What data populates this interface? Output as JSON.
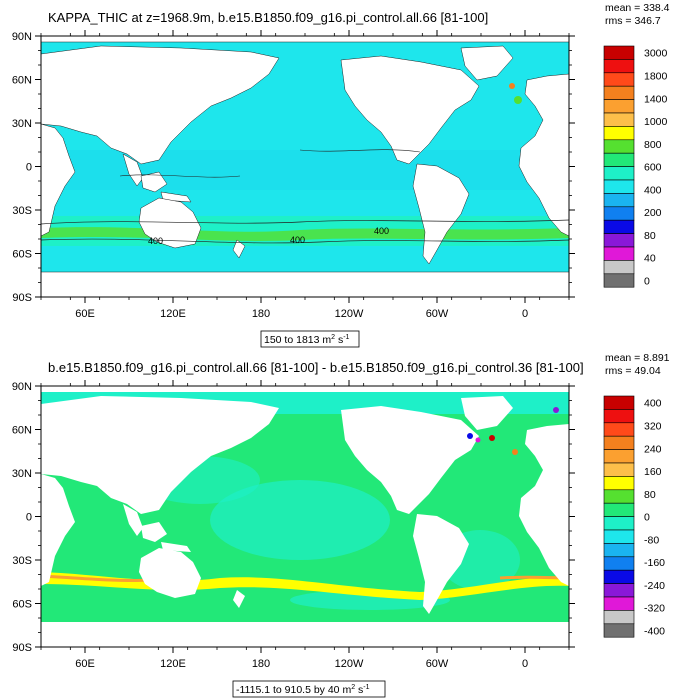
{
  "panels": [
    {
      "title": "KAPPA_THIC at z=1968.9m, b.e15.B1850.f09_g16.pi_control.all.66 [81-100]",
      "mean": "mean = 338.4",
      "rms": "rms = 346.7",
      "range_label": "150 to 1813 m",
      "range_unit_exp": "2",
      "range_unit_tail": " s",
      "range_unit_exp2": "-1",
      "y_ticks": [
        "90N",
        "60N",
        "30N",
        "0",
        "30S",
        "60S",
        "90S"
      ],
      "x_ticks": [
        "60E",
        "120E",
        "180",
        "120W",
        "60W",
        "0"
      ],
      "contour_labels": [
        "400",
        "400",
        "400"
      ],
      "colorbar": {
        "colors": [
          "#c80000",
          "#ee1010",
          "#ff4a1a",
          "#f4801e",
          "#fba030",
          "#fdbf4a",
          "#ffff00",
          "#55e030",
          "#22e878",
          "#1ef0c8",
          "#1ee6ec",
          "#1ab4f0",
          "#1080f0",
          "#0a0ae6",
          "#8a18d8",
          "#e018d8",
          "#c8c8c8",
          "#707070"
        ],
        "labels": [
          "3000",
          "1800",
          "1400",
          "1000",
          "800",
          "600",
          "400",
          "200",
          "80",
          "40",
          "0"
        ]
      }
    },
    {
      "title": "b.e15.B1850.f09_g16.pi_control.all.66 [81-100] - b.e15.B1850.f09_g16.pi_control.36 [81-100]",
      "mean": "mean = 8.891",
      "rms": "rms = 49.04",
      "range_label": "-1115.1 to 910.5 by 40 m",
      "range_unit_exp": "2",
      "range_unit_tail": " s",
      "range_unit_exp2": "-1",
      "y_ticks": [
        "90N",
        "60N",
        "30N",
        "0",
        "30S",
        "60S",
        "90S"
      ],
      "x_ticks": [
        "60E",
        "120E",
        "180",
        "120W",
        "60W",
        "0"
      ],
      "colorbar": {
        "colors": [
          "#c80000",
          "#ee1010",
          "#ff4a1a",
          "#f4801e",
          "#fba030",
          "#fdbf4a",
          "#ffff00",
          "#55e030",
          "#22e878",
          "#1ef0c8",
          "#1ee6ec",
          "#1ab4f0",
          "#1080f0",
          "#0a0ae6",
          "#8a18d8",
          "#e018d8",
          "#c8c8c8",
          "#707070"
        ],
        "labels": [
          "400",
          "320",
          "240",
          "160",
          "80",
          "0",
          "-80",
          "-160",
          "-240",
          "-320",
          "-400"
        ]
      }
    }
  ]
}
